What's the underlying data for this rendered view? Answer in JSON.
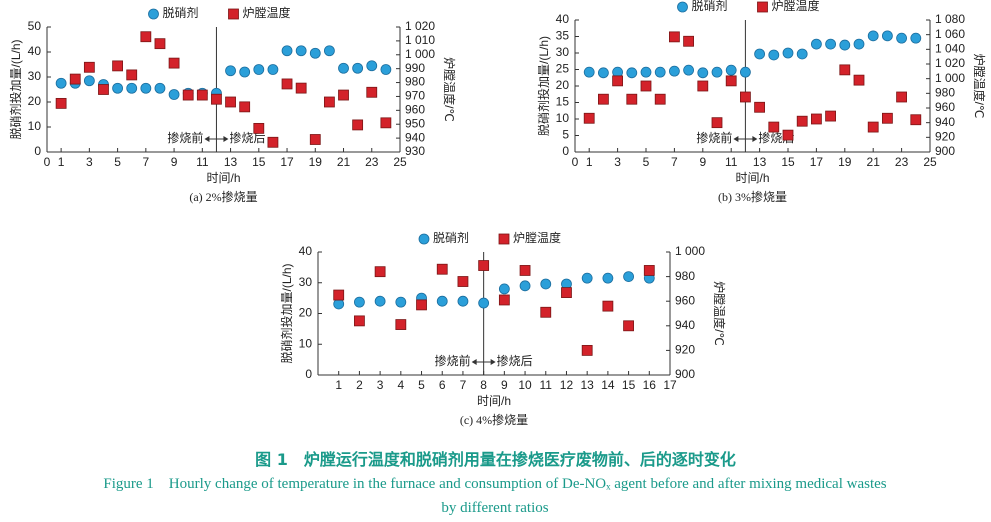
{
  "chart_data": [
    {
      "type": "scatter",
      "subtitle": "(a) 2%掺烧量",
      "xlabel": "时间/h",
      "ylabel": "脱硝剂投加量/(L/h)",
      "y2label": "炉膛温度/℃",
      "xlim": [
        0,
        25
      ],
      "xticks": [
        0,
        1,
        3,
        5,
        7,
        9,
        11,
        13,
        15,
        17,
        19,
        21,
        23,
        25
      ],
      "ylim": [
        0,
        50
      ],
      "yticks": [
        0,
        10,
        20,
        30,
        40,
        50
      ],
      "y2lim": [
        930,
        1020
      ],
      "y2ticks": [
        930,
        940,
        950,
        960,
        970,
        980,
        990,
        {
          "value": 1000,
          "label": "1 000"
        },
        {
          "value": 1010,
          "label": "1 010"
        },
        {
          "value": 1020,
          "label": "1 020"
        }
      ],
      "legend": "top",
      "divider_x": 12,
      "annotations": [
        "掺烧前",
        "掺烧后"
      ],
      "x": [
        1,
        2,
        3,
        4,
        5,
        6,
        7,
        8,
        9,
        10,
        11,
        12,
        13,
        14,
        15,
        16,
        17,
        18,
        19,
        20,
        21,
        22,
        23,
        24
      ],
      "series": [
        {
          "name": "脱硝剂",
          "color": "#2b9fd9",
          "marker": "circle",
          "values": [
            27.5,
            27.5,
            28.5,
            27,
            25.5,
            25.5,
            25.5,
            25.5,
            23,
            23.5,
            23.5,
            23.5,
            32.5,
            32,
            33,
            33,
            40.5,
            40.5,
            39.5,
            40.5,
            33.5,
            33.5,
            34.5,
            33
          ]
        },
        {
          "name": "炉膛温度",
          "color": "#d3222a",
          "marker": "square",
          "axis": "y2",
          "values": [
            965,
            982.5,
            991,
            975,
            992,
            985.5,
            1013,
            1008,
            994,
            971,
            971,
            968,
            966,
            962.5,
            947,
            937,
            979,
            976,
            939,
            966,
            971,
            949.5,
            973,
            951
          ]
        }
      ]
    },
    {
      "type": "scatter",
      "subtitle": "(b) 3%掺烧量",
      "xlabel": "时间/h",
      "ylabel": "脱硝剂投加量/(L/h)",
      "y2label": "炉膛温度/℃",
      "xlim": [
        0,
        25
      ],
      "xticks": [
        0,
        1,
        3,
        5,
        7,
        9,
        11,
        13,
        15,
        17,
        19,
        21,
        23,
        25
      ],
      "ylim": [
        0,
        40
      ],
      "yticks": [
        0,
        5,
        10,
        15,
        20,
        25,
        30,
        35,
        40
      ],
      "y2lim": [
        900,
        1080
      ],
      "y2ticks": [
        900,
        920,
        940,
        960,
        980,
        {
          "value": 1000,
          "label": "1 000"
        },
        {
          "value": 1020,
          "label": "1 020"
        },
        {
          "value": 1040,
          "label": "1 040"
        },
        {
          "value": 1060,
          "label": "1 060"
        },
        {
          "value": 1080,
          "label": "1 080"
        }
      ],
      "legend": "top",
      "divider_x": 12,
      "annotations": [
        "掺烧前",
        "掺烧后"
      ],
      "x": [
        1,
        2,
        3,
        4,
        5,
        6,
        7,
        8,
        9,
        10,
        11,
        12,
        13,
        14,
        15,
        16,
        17,
        18,
        19,
        20,
        21,
        22,
        23,
        24
      ],
      "series": [
        {
          "name": "脱硝剂",
          "color": "#2b9fd9",
          "marker": "circle",
          "values": [
            24.2,
            24,
            24.2,
            24,
            24.2,
            24.2,
            24.5,
            24.8,
            24,
            24.2,
            24.8,
            24.2,
            29.7,
            29.4,
            30,
            29.7,
            32.7,
            32.7,
            32.4,
            32.7,
            35.2,
            35.2,
            34.5,
            34.5
          ]
        },
        {
          "name": "炉膛温度",
          "color": "#d3222a",
          "marker": "square",
          "axis": "y2",
          "values": [
            946,
            972,
            997,
            972,
            990,
            972,
            1057,
            1051,
            990,
            940,
            997,
            975,
            961,
            934,
            923,
            942,
            945,
            949,
            1012,
            998,
            934,
            946,
            975,
            944
          ]
        }
      ]
    },
    {
      "type": "scatter",
      "subtitle": "(c) 4%掺烧量",
      "xlabel": "时间/h",
      "ylabel": "脱硝剂投加量/(L/h)",
      "y2label": "炉膛温度/℃",
      "xlim": [
        0,
        17
      ],
      "xticks": [
        1,
        2,
        3,
        4,
        5,
        6,
        7,
        8,
        9,
        10,
        11,
        12,
        13,
        14,
        15,
        16,
        17
      ],
      "ylim": [
        0,
        40
      ],
      "yticks": [
        0,
        10,
        20,
        30,
        40
      ],
      "y2lim": [
        900,
        1000
      ],
      "y2ticks": [
        900,
        920,
        940,
        960,
        980,
        {
          "value": 1000,
          "label": "1 000"
        }
      ],
      "legend": "top",
      "divider_x": 8,
      "annotations": [
        "掺烧前",
        "掺烧后"
      ],
      "x": [
        1,
        2,
        3,
        4,
        5,
        6,
        7,
        8,
        9,
        10,
        11,
        12,
        13,
        14,
        15,
        16
      ],
      "series": [
        {
          "name": "脱硝剂",
          "color": "#2b9fd9",
          "marker": "circle",
          "values": [
            23.1,
            23.7,
            24,
            23.7,
            25,
            24,
            24,
            23.4,
            28,
            29,
            29.6,
            29.6,
            31.5,
            31.5,
            32,
            31.5
          ]
        },
        {
          "name": "炉膛温度",
          "color": "#d3222a",
          "marker": "square",
          "axis": "y2",
          "values": [
            965,
            944,
            984,
            941,
            957,
            986,
            976,
            989,
            961,
            985,
            951,
            967,
            920,
            956,
            940,
            985
          ]
        }
      ]
    }
  ],
  "caption": {
    "title": "图 1　炉膛运行温度和脱硝剂用量在掺烧医疗废物前、后的逐时变化",
    "title_en": "Figure 1　Hourly change of temperature in the furnace and consumption of De-NOₓ agent before and after mixing medical wastes by different ratios"
  }
}
